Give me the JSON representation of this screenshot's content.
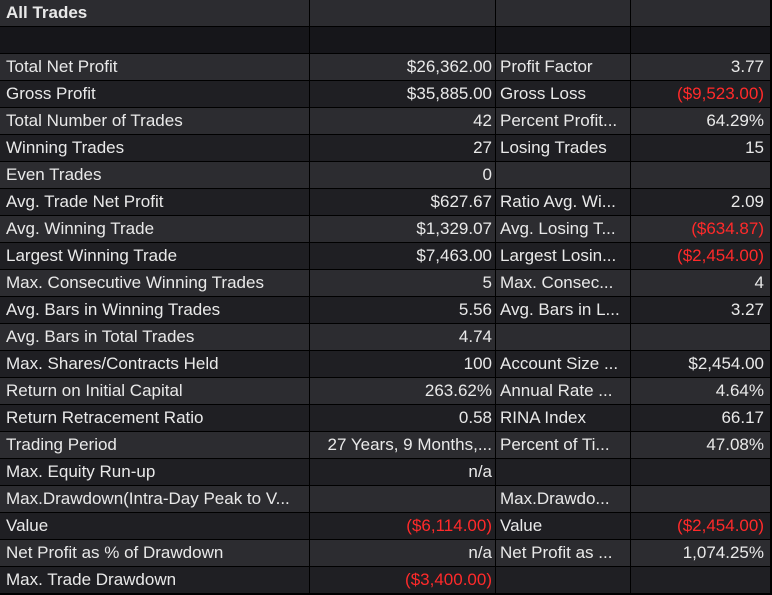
{
  "title": "All Trades",
  "negative_color": "#ff2a2a",
  "rows": [
    {
      "l1": "Total Net Profit",
      "v1": "$26,362.00",
      "n1": false,
      "l2": "Profit Factor",
      "v2": "3.77",
      "n2": false
    },
    {
      "l1": "Gross Profit",
      "v1": "$35,885.00",
      "n1": false,
      "l2": "Gross Loss",
      "v2": "($9,523.00)",
      "n2": true
    },
    {
      "l1": "Total Number of Trades",
      "v1": "42",
      "n1": false,
      "l2": "Percent Profit...",
      "v2": "64.29%",
      "n2": false
    },
    {
      "l1": "Winning Trades",
      "v1": "27",
      "n1": false,
      "l2": "Losing Trades",
      "v2": "15",
      "n2": false
    },
    {
      "l1": "Even Trades",
      "v1": "0",
      "n1": false,
      "l2": "",
      "v2": "",
      "n2": false
    },
    {
      "l1": "Avg. Trade Net Profit",
      "v1": "$627.67",
      "n1": false,
      "l2": "Ratio Avg. Wi...",
      "v2": "2.09",
      "n2": false
    },
    {
      "l1": "Avg. Winning Trade",
      "v1": "$1,329.07",
      "n1": false,
      "l2": "Avg. Losing T...",
      "v2": "($634.87)",
      "n2": true
    },
    {
      "l1": "Largest Winning Trade",
      "v1": "$7,463.00",
      "n1": false,
      "l2": "Largest Losin...",
      "v2": "($2,454.00)",
      "n2": true
    },
    {
      "l1": "Max. Consecutive Winning Trades",
      "v1": "5",
      "n1": false,
      "l2": "Max. Consec...",
      "v2": "4",
      "n2": false
    },
    {
      "l1": "Avg. Bars in Winning Trades",
      "v1": "5.56",
      "n1": false,
      "l2": "Avg. Bars in L...",
      "v2": "3.27",
      "n2": false
    },
    {
      "l1": "Avg. Bars in Total Trades",
      "v1": "4.74",
      "n1": false,
      "l2": "",
      "v2": "",
      "n2": false
    },
    {
      "l1": "Max. Shares/Contracts Held",
      "v1": "100",
      "n1": false,
      "l2": "Account Size ...",
      "v2": "$2,454.00",
      "n2": false
    },
    {
      "l1": "Return on Initial Capital",
      "v1": "263.62%",
      "n1": false,
      "l2": "Annual Rate ...",
      "v2": "4.64%",
      "n2": false
    },
    {
      "l1": "Return Retracement Ratio",
      "v1": "0.58",
      "n1": false,
      "l2": "RINA Index",
      "v2": "66.17",
      "n2": false
    },
    {
      "l1": "Trading Period",
      "v1": "27 Years, 9 Months,...",
      "n1": false,
      "l2": "Percent of Ti...",
      "v2": "47.08%",
      "n2": false
    },
    {
      "l1": "Max. Equity Run-up",
      "v1": "n/a",
      "n1": false,
      "l2": "",
      "v2": "",
      "n2": false
    },
    {
      "l1": "Max.Drawdown(Intra-Day Peak to V...",
      "v1": "",
      "n1": false,
      "l2": "Max.Drawdo...",
      "v2": "",
      "n2": false
    },
    {
      "l1": "Value",
      "v1": "($6,114.00)",
      "n1": true,
      "l2": "Value",
      "v2": "($2,454.00)",
      "n2": true
    },
    {
      "l1": "Net Profit as % of Drawdown",
      "v1": "n/a",
      "n1": false,
      "l2": "Net Profit as ...",
      "v2": "1,074.25%",
      "n2": false
    },
    {
      "l1": "Max. Trade Drawdown",
      "v1": "($3,400.00)",
      "n1": true,
      "l2": "",
      "v2": "",
      "n2": false
    }
  ]
}
